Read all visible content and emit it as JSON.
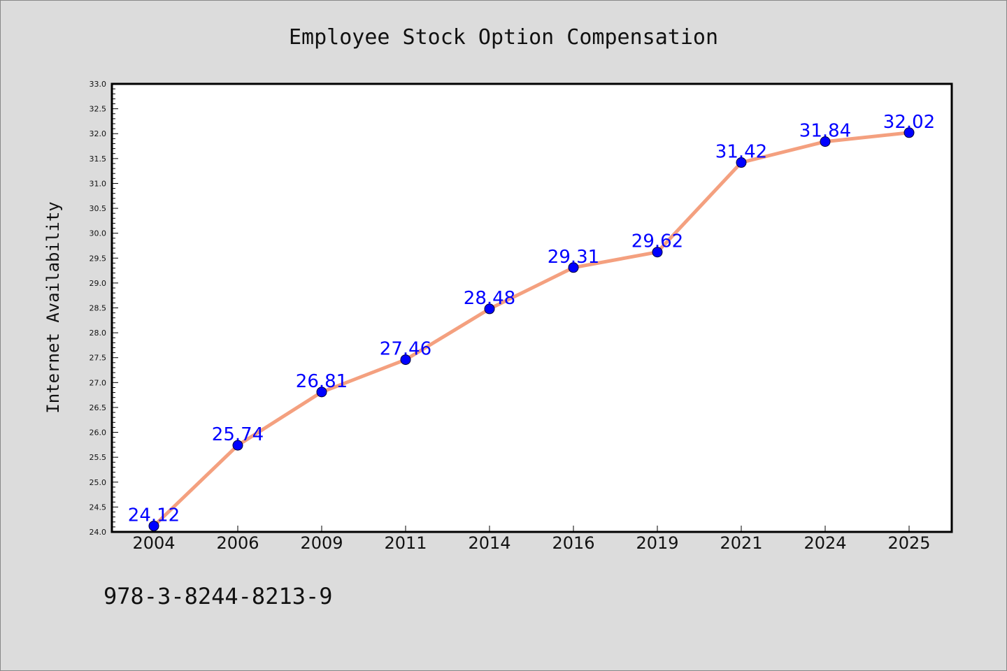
{
  "chart_data": {
    "type": "line",
    "title": "Employee Stock Option Compensation",
    "xlabel": "",
    "ylabel": "Internet Availability",
    "categories": [
      "2004",
      "2006",
      "2009",
      "2011",
      "2014",
      "2016",
      "2019",
      "2021",
      "2024",
      "2025"
    ],
    "series": [
      {
        "values": [
          24.12,
          25.74,
          26.81,
          27.46,
          28.48,
          29.31,
          29.62,
          31.42,
          31.84,
          32.02
        ]
      }
    ],
    "data_labels": [
      "24.12",
      "25.74",
      "26.81",
      "27.46",
      "28.48",
      "29.31",
      "29.62",
      "31.42",
      "31.84",
      "32.02"
    ],
    "ylim": [
      24.0,
      33.0
    ],
    "yticks": [
      "24.0",
      "24.5",
      "25.0",
      "25.5",
      "26.0",
      "26.5",
      "27.0",
      "27.5",
      "28.0",
      "28.5",
      "29.0",
      "29.5",
      "30.0",
      "30.5",
      "31.0",
      "31.5",
      "32.0",
      "32.5",
      "33.0"
    ],
    "grid": false,
    "legend": "none",
    "colors": {
      "line": "#f4a07f",
      "marker": "#0000ff",
      "label": "#0000ff",
      "background": "#dcdcdc",
      "plot_background": "#ffffff"
    }
  },
  "footnote": "978-3-8244-8213-9"
}
